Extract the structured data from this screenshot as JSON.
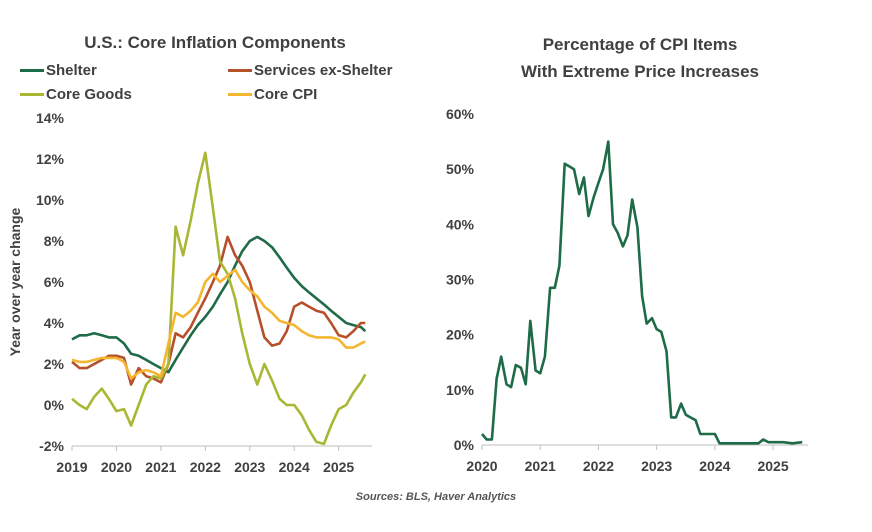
{
  "source": "Sources: BLS, Haver Analytics",
  "chart_data": [
    {
      "type": "line",
      "title": "U.S.: Core Inflation Components",
      "ylabel": "Year over year change",
      "xlabel": "",
      "xlim": [
        2019,
        2025.75
      ],
      "ylim": [
        -2,
        14
      ],
      "x_ticks": [
        "2019",
        "2020",
        "2021",
        "2022",
        "2023",
        "2024",
        "2025"
      ],
      "y_ticks": [
        "-2%",
        "0%",
        "2%",
        "4%",
        "6%",
        "8%",
        "10%",
        "12%",
        "14%"
      ],
      "legend": "top",
      "grid": false,
      "series": [
        {
          "name": "Shelter",
          "color": "#1E6B47",
          "points": [
            [
              2019.0,
              3.2
            ],
            [
              2019.17,
              3.4
            ],
            [
              2019.33,
              3.4
            ],
            [
              2019.5,
              3.5
            ],
            [
              2019.67,
              3.4
            ],
            [
              2019.83,
              3.3
            ],
            [
              2020.0,
              3.3
            ],
            [
              2020.17,
              3.0
            ],
            [
              2020.33,
              2.5
            ],
            [
              2020.5,
              2.4
            ],
            [
              2020.67,
              2.2
            ],
            [
              2020.83,
              2.0
            ],
            [
              2021.0,
              1.8
            ],
            [
              2021.17,
              1.6
            ],
            [
              2021.33,
              2.2
            ],
            [
              2021.5,
              2.8
            ],
            [
              2021.67,
              3.4
            ],
            [
              2021.83,
              3.9
            ],
            [
              2022.0,
              4.3
            ],
            [
              2022.17,
              4.8
            ],
            [
              2022.33,
              5.4
            ],
            [
              2022.5,
              6.0
            ],
            [
              2022.67,
              6.8
            ],
            [
              2022.83,
              7.5
            ],
            [
              2023.0,
              8.0
            ],
            [
              2023.17,
              8.2
            ],
            [
              2023.33,
              8.0
            ],
            [
              2023.5,
              7.7
            ],
            [
              2023.67,
              7.2
            ],
            [
              2023.83,
              6.7
            ],
            [
              2024.0,
              6.2
            ],
            [
              2024.17,
              5.8
            ],
            [
              2024.33,
              5.5
            ],
            [
              2024.5,
              5.2
            ],
            [
              2024.67,
              4.9
            ],
            [
              2024.83,
              4.6
            ],
            [
              2025.0,
              4.3
            ],
            [
              2025.17,
              4.0
            ],
            [
              2025.33,
              3.9
            ],
            [
              2025.5,
              3.8
            ],
            [
              2025.6,
              3.6
            ]
          ]
        },
        {
          "name": "Services ex-Shelter",
          "color": "#B5502A",
          "points": [
            [
              2019.0,
              2.1
            ],
            [
              2019.17,
              1.8
            ],
            [
              2019.33,
              1.8
            ],
            [
              2019.5,
              2.0
            ],
            [
              2019.67,
              2.2
            ],
            [
              2019.83,
              2.4
            ],
            [
              2020.0,
              2.4
            ],
            [
              2020.17,
              2.3
            ],
            [
              2020.33,
              1.0
            ],
            [
              2020.5,
              1.8
            ],
            [
              2020.67,
              1.4
            ],
            [
              2020.83,
              1.3
            ],
            [
              2021.0,
              1.1
            ],
            [
              2021.17,
              2.0
            ],
            [
              2021.33,
              3.5
            ],
            [
              2021.5,
              3.3
            ],
            [
              2021.67,
              3.8
            ],
            [
              2021.83,
              4.5
            ],
            [
              2022.0,
              5.2
            ],
            [
              2022.17,
              6.0
            ],
            [
              2022.33,
              6.8
            ],
            [
              2022.5,
              8.2
            ],
            [
              2022.67,
              7.3
            ],
            [
              2022.83,
              6.8
            ],
            [
              2023.0,
              6.0
            ],
            [
              2023.17,
              4.6
            ],
            [
              2023.33,
              3.3
            ],
            [
              2023.5,
              2.9
            ],
            [
              2023.67,
              3.0
            ],
            [
              2023.83,
              3.6
            ],
            [
              2024.0,
              4.8
            ],
            [
              2024.17,
              5.0
            ],
            [
              2024.33,
              4.8
            ],
            [
              2024.5,
              4.6
            ],
            [
              2024.67,
              4.5
            ],
            [
              2024.83,
              4.0
            ],
            [
              2025.0,
              3.4
            ],
            [
              2025.17,
              3.3
            ],
            [
              2025.33,
              3.6
            ],
            [
              2025.5,
              4.0
            ],
            [
              2025.6,
              4.0
            ]
          ]
        },
        {
          "name": "Core Goods",
          "color": "#A9B734",
          "points": [
            [
              2019.0,
              0.3
            ],
            [
              2019.17,
              0.0
            ],
            [
              2019.33,
              -0.2
            ],
            [
              2019.5,
              0.4
            ],
            [
              2019.67,
              0.8
            ],
            [
              2019.83,
              0.3
            ],
            [
              2020.0,
              -0.3
            ],
            [
              2020.17,
              -0.2
            ],
            [
              2020.33,
              -1.0
            ],
            [
              2020.5,
              0.0
            ],
            [
              2020.67,
              1.0
            ],
            [
              2020.83,
              1.4
            ],
            [
              2021.0,
              1.3
            ],
            [
              2021.17,
              2.0
            ],
            [
              2021.33,
              8.7
            ],
            [
              2021.5,
              7.3
            ],
            [
              2021.67,
              9.0
            ],
            [
              2021.83,
              10.8
            ],
            [
              2022.0,
              12.3
            ],
            [
              2022.17,
              9.6
            ],
            [
              2022.33,
              7.0
            ],
            [
              2022.5,
              6.4
            ],
            [
              2022.67,
              5.2
            ],
            [
              2022.83,
              3.5
            ],
            [
              2023.0,
              2.0
            ],
            [
              2023.17,
              1.0
            ],
            [
              2023.33,
              2.0
            ],
            [
              2023.5,
              1.2
            ],
            [
              2023.67,
              0.3
            ],
            [
              2023.83,
              0.0
            ],
            [
              2024.0,
              0.0
            ],
            [
              2024.17,
              -0.5
            ],
            [
              2024.33,
              -1.2
            ],
            [
              2024.5,
              -1.8
            ],
            [
              2024.67,
              -1.9
            ],
            [
              2024.83,
              -1.0
            ],
            [
              2025.0,
              -0.2
            ],
            [
              2025.17,
              0.0
            ],
            [
              2025.33,
              0.6
            ],
            [
              2025.5,
              1.1
            ],
            [
              2025.6,
              1.5
            ]
          ]
        },
        {
          "name": "Core CPI",
          "color": "#F5B62F",
          "points": [
            [
              2019.0,
              2.2
            ],
            [
              2019.17,
              2.1
            ],
            [
              2019.33,
              2.1
            ],
            [
              2019.5,
              2.2
            ],
            [
              2019.67,
              2.3
            ],
            [
              2019.83,
              2.3
            ],
            [
              2020.0,
              2.3
            ],
            [
              2020.17,
              2.1
            ],
            [
              2020.33,
              1.3
            ],
            [
              2020.5,
              1.6
            ],
            [
              2020.67,
              1.7
            ],
            [
              2020.83,
              1.6
            ],
            [
              2021.0,
              1.4
            ],
            [
              2021.17,
              3.0
            ],
            [
              2021.33,
              4.5
            ],
            [
              2021.5,
              4.3
            ],
            [
              2021.67,
              4.6
            ],
            [
              2021.83,
              5.0
            ],
            [
              2022.0,
              6.0
            ],
            [
              2022.17,
              6.4
            ],
            [
              2022.33,
              6.0
            ],
            [
              2022.5,
              6.3
            ],
            [
              2022.67,
              6.6
            ],
            [
              2022.83,
              6.0
            ],
            [
              2023.0,
              5.6
            ],
            [
              2023.17,
              5.3
            ],
            [
              2023.33,
              4.8
            ],
            [
              2023.5,
              4.5
            ],
            [
              2023.67,
              4.1
            ],
            [
              2023.83,
              4.0
            ],
            [
              2024.0,
              3.9
            ],
            [
              2024.17,
              3.6
            ],
            [
              2024.33,
              3.4
            ],
            [
              2024.5,
              3.3
            ],
            [
              2024.67,
              3.3
            ],
            [
              2024.83,
              3.3
            ],
            [
              2025.0,
              3.2
            ],
            [
              2025.17,
              2.8
            ],
            [
              2025.33,
              2.8
            ],
            [
              2025.5,
              3.0
            ],
            [
              2025.6,
              3.1
            ]
          ]
        }
      ]
    },
    {
      "type": "line",
      "title": "Percentage of CPI Items With Extreme Price Increases",
      "title_lines": [
        "Percentage of CPI Items",
        "With Extreme Price Increases"
      ],
      "xlabel": "",
      "ylabel": "",
      "xlim": [
        2020,
        2025.6
      ],
      "ylim": [
        0,
        60
      ],
      "x_ticks": [
        "2020",
        "2021",
        "2022",
        "2023",
        "2024",
        "2025"
      ],
      "y_ticks": [
        "0%",
        "10%",
        "20%",
        "30%",
        "40%",
        "50%",
        "60%"
      ],
      "grid": false,
      "series": [
        {
          "color": "#1E6B47",
          "points": [
            [
              2020.0,
              2
            ],
            [
              2020.08,
              1
            ],
            [
              2020.17,
              1
            ],
            [
              2020.25,
              12
            ],
            [
              2020.33,
              16
            ],
            [
              2020.42,
              11
            ],
            [
              2020.5,
              10.5
            ],
            [
              2020.58,
              14.5
            ],
            [
              2020.67,
              14
            ],
            [
              2020.75,
              11
            ],
            [
              2020.83,
              22.5
            ],
            [
              2020.92,
              13.5
            ],
            [
              2021.0,
              13
            ],
            [
              2021.08,
              16
            ],
            [
              2021.17,
              28.5
            ],
            [
              2021.25,
              28.5
            ],
            [
              2021.33,
              32.5
            ],
            [
              2021.42,
              51
            ],
            [
              2021.5,
              50.5
            ],
            [
              2021.58,
              50
            ],
            [
              2021.67,
              45.5
            ],
            [
              2021.75,
              48.5
            ],
            [
              2021.83,
              41.5
            ],
            [
              2021.92,
              45
            ],
            [
              2022.0,
              47.5
            ],
            [
              2022.08,
              50
            ],
            [
              2022.17,
              55
            ],
            [
              2022.25,
              40
            ],
            [
              2022.33,
              38.5
            ],
            [
              2022.42,
              36
            ],
            [
              2022.5,
              38
            ],
            [
              2022.58,
              44.5
            ],
            [
              2022.67,
              39.5
            ],
            [
              2022.75,
              27
            ],
            [
              2022.83,
              22
            ],
            [
              2022.92,
              23
            ],
            [
              2023.0,
              21
            ],
            [
              2023.08,
              20.5
            ],
            [
              2023.17,
              17
            ],
            [
              2023.25,
              5
            ],
            [
              2023.33,
              5
            ],
            [
              2023.42,
              7.5
            ],
            [
              2023.5,
              5.5
            ],
            [
              2023.58,
              5
            ],
            [
              2023.67,
              4.5
            ],
            [
              2023.75,
              2
            ],
            [
              2023.83,
              2
            ],
            [
              2023.92,
              2
            ],
            [
              2024.0,
              2
            ],
            [
              2024.08,
              0.3
            ],
            [
              2024.25,
              0.3
            ],
            [
              2024.5,
              0.3
            ],
            [
              2024.75,
              0.3
            ],
            [
              2024.83,
              1
            ],
            [
              2024.92,
              0.5
            ],
            [
              2025.0,
              0.5
            ],
            [
              2025.17,
              0.5
            ],
            [
              2025.33,
              0.3
            ],
            [
              2025.5,
              0.5
            ]
          ]
        }
      ]
    }
  ]
}
